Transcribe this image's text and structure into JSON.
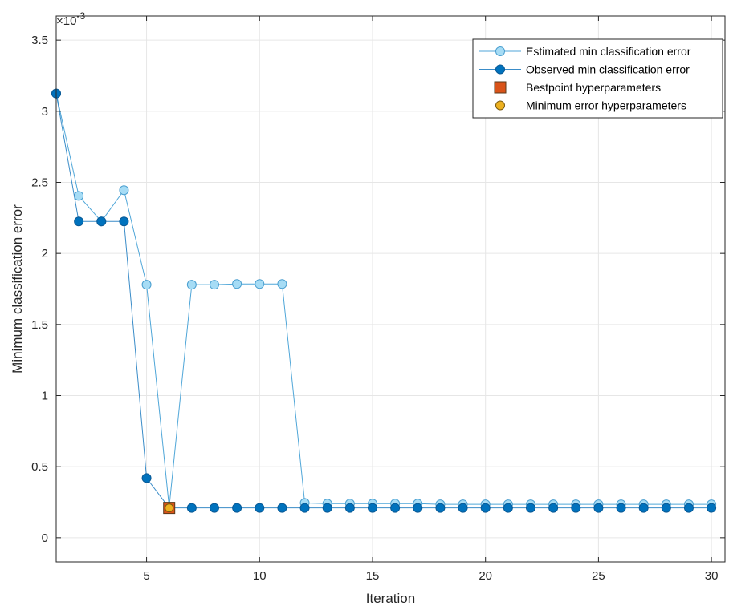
{
  "chart_data": {
    "type": "line",
    "title": "",
    "xlabel": "Iteration",
    "ylabel": "Minimum classification error",
    "y_exponent_label": "×10",
    "y_exponent_power": "-3",
    "xlim": [
      1,
      30.6
    ],
    "ylim": [
      -0.00017,
      0.00367
    ],
    "x_ticks": [
      5,
      10,
      15,
      20,
      25,
      30
    ],
    "y_ticks": [
      0,
      0.0005,
      0.001,
      0.0015,
      0.002,
      0.0025,
      0.003,
      0.0035
    ],
    "y_tick_labels": [
      "0",
      "0.5",
      "1",
      "1.5",
      "2",
      "2.5",
      "3",
      "3.5"
    ],
    "grid": true,
    "legend_position": "top-right",
    "x": [
      1,
      2,
      3,
      4,
      5,
      6,
      7,
      8,
      9,
      10,
      11,
      12,
      13,
      14,
      15,
      16,
      17,
      18,
      19,
      20,
      21,
      22,
      23,
      24,
      25,
      26,
      27,
      28,
      29,
      30
    ],
    "series": [
      {
        "name": "Estimated min classification error",
        "color": "#a6dcf5",
        "edge_color": "#4a9fd0",
        "marker": "circle",
        "values": [
          0.003125,
          0.002405,
          0.002225,
          0.002445,
          0.00178,
          0.000215,
          0.00178,
          0.00178,
          0.001785,
          0.001785,
          0.001785,
          0.000245,
          0.00024,
          0.00024,
          0.00024,
          0.00024,
          0.00024,
          0.000235,
          0.000235,
          0.000235,
          0.000235,
          0.000235,
          0.000235,
          0.000235,
          0.000235,
          0.000235,
          0.000235,
          0.000235,
          0.000235,
          0.000235
        ]
      },
      {
        "name": "Observed min classification error",
        "color": "#0072bd",
        "edge_color": "#0a5a96",
        "marker": "circle",
        "values": [
          0.003125,
          0.002225,
          0.002225,
          0.002225,
          0.00042,
          0.00021,
          0.00021,
          0.00021,
          0.00021,
          0.00021,
          0.00021,
          0.00021,
          0.00021,
          0.00021,
          0.00021,
          0.00021,
          0.00021,
          0.00021,
          0.00021,
          0.00021,
          0.00021,
          0.00021,
          0.00021,
          0.00021,
          0.00021,
          0.00021,
          0.00021,
          0.00021,
          0.00021,
          0.00021
        ]
      }
    ],
    "points": [
      {
        "name": "Bestpoint hyperparameters",
        "marker": "square",
        "color": "#d95319",
        "x": 6,
        "y": 0.00021
      },
      {
        "name": "Minimum error hyperparameters",
        "marker": "circle",
        "color": "#edb120",
        "x": 6,
        "y": 0.00021
      }
    ]
  }
}
